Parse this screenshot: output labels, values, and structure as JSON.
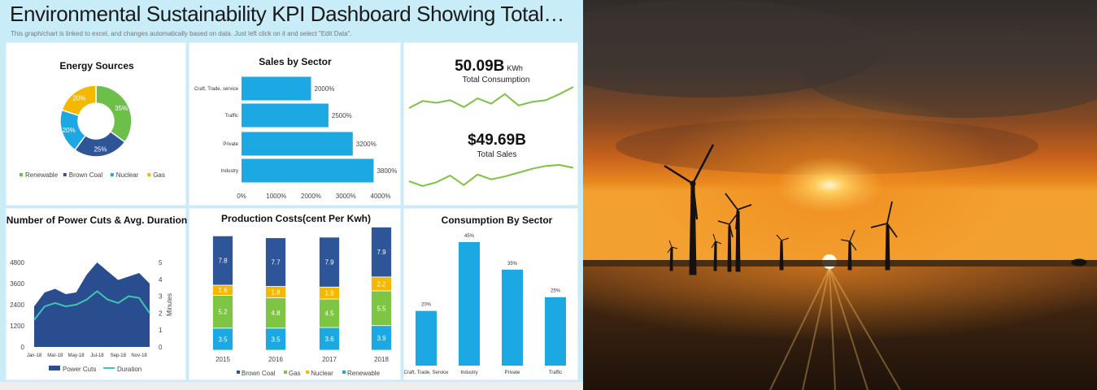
{
  "header": {
    "title": "Environmental Sustainability KPI Dashboard Showing Total…",
    "subtitle": "This graph/chart is linked to excel, and changes automatically based on data. Just left click on it and select \"Edit Data\"."
  },
  "colors": {
    "renewable": "#6cc04a",
    "brown_coal": "#2e5597",
    "nuclear": "#1ba8e3",
    "gas": "#f5b800",
    "cost_gas": "#7ec544",
    "bar_blue": "#1ba8e3",
    "area": "#2a4d8f",
    "duration": "#3cc7b3",
    "spark": "#7dc242"
  },
  "chart_data": [
    {
      "id": "energy_sources",
      "type": "pie",
      "title": "Energy Sources",
      "slices": [
        {
          "name": "Renewable",
          "value": 35,
          "label": "35%"
        },
        {
          "name": "Brown Coal",
          "value": 25,
          "label": "25%"
        },
        {
          "name": "Nuclear",
          "value": 20,
          "label": "20%"
        },
        {
          "name": "Gas",
          "value": 20,
          "label": "20%"
        }
      ],
      "legend": [
        "Renewable",
        "Brown Coal",
        "Nuclear",
        "Gas"
      ]
    },
    {
      "id": "sales_by_sector",
      "type": "bar",
      "orientation": "horizontal",
      "title": "Sales by Sector",
      "categories": [
        "Craft, Trade, service",
        "Traffic",
        "Private",
        "Industry"
      ],
      "values": [
        2000,
        2500,
        3200,
        3800
      ],
      "value_labels": [
        "2000%",
        "2500%",
        "3200%",
        "3800%"
      ],
      "xlim": [
        0,
        4000
      ],
      "xticks": [
        "0%",
        "1000%",
        "2000%",
        "3000%",
        "4000%"
      ]
    },
    {
      "id": "total_consumption",
      "type": "line",
      "value": "50.09B",
      "unit": "KWh",
      "label": "Total Consumption",
      "values": [
        28,
        20,
        22,
        19,
        27,
        17,
        23,
        12,
        25,
        21,
        19,
        12,
        4
      ]
    },
    {
      "id": "total_sales",
      "type": "line",
      "value": "$49.69B",
      "label": "Total Sales",
      "values": [
        22,
        27,
        23,
        16,
        26,
        15,
        20,
        17,
        13,
        9,
        6,
        5,
        8
      ]
    },
    {
      "id": "power_cuts",
      "type": "area",
      "title": "Number of Power Cuts & Avg. Duration",
      "x": [
        "Jan-18",
        "Feb-18",
        "Mar-18",
        "Apr-18",
        "May-18",
        "Jun-18",
        "Jul-18",
        "Aug-18",
        "Sep-18",
        "Oct-18",
        "Nov-18",
        "Dec-18"
      ],
      "xticks": [
        "Jan-18",
        "Mar-18",
        "May-18",
        "Jul-18",
        "Sep-18",
        "Nov-18"
      ],
      "series": [
        {
          "name": "Power Cuts",
          "type": "area",
          "axis": "left",
          "values": [
            2300,
            3100,
            3300,
            3000,
            3100,
            4100,
            4800,
            4300,
            3800,
            4000,
            4200,
            3600
          ]
        },
        {
          "name": "Duration",
          "type": "line",
          "axis": "right",
          "values": [
            1.6,
            2.4,
            2.6,
            2.4,
            2.5,
            2.8,
            3.3,
            2.8,
            2.6,
            3.0,
            2.9,
            2.0
          ]
        }
      ],
      "ylim_left": [
        0,
        4800
      ],
      "yticks_left": [
        "0",
        "1200",
        "2400",
        "3600",
        "4800"
      ],
      "ylim_right": [
        0,
        5
      ],
      "yticks_right": [
        "0",
        "1",
        "2",
        "3",
        "4",
        "5"
      ],
      "ylabel_right": "Minutes"
    },
    {
      "id": "production_costs",
      "type": "bar",
      "stacked": true,
      "title": "Production Costs(cent Per Kwh)",
      "categories": [
        "2015",
        "2016",
        "2017",
        "2018"
      ],
      "series": [
        {
          "name": "Renewable",
          "values": [
            3.5,
            3.5,
            3.6,
            3.9
          ]
        },
        {
          "name": "Gas",
          "values": [
            5.2,
            4.8,
            4.5,
            5.5
          ]
        },
        {
          "name": "Nuclear",
          "values": [
            1.6,
            1.8,
            1.9,
            2.2
          ]
        },
        {
          "name": "Brown Coal",
          "values": [
            7.8,
            7.7,
            7.9,
            7.9
          ]
        }
      ],
      "legend": [
        "Brown Coal",
        "Gas",
        "Nuclear",
        "Renewable"
      ]
    },
    {
      "id": "consumption_by_sector",
      "type": "bar",
      "title": "Consumption By Sector",
      "categories": [
        "Craft, Trade, Service",
        "Industry",
        "Private",
        "Traffic"
      ],
      "values": [
        20,
        45,
        35,
        25
      ],
      "value_labels": [
        "20%",
        "45%",
        "35%",
        "25%"
      ],
      "ylim": [
        0,
        50
      ]
    }
  ]
}
